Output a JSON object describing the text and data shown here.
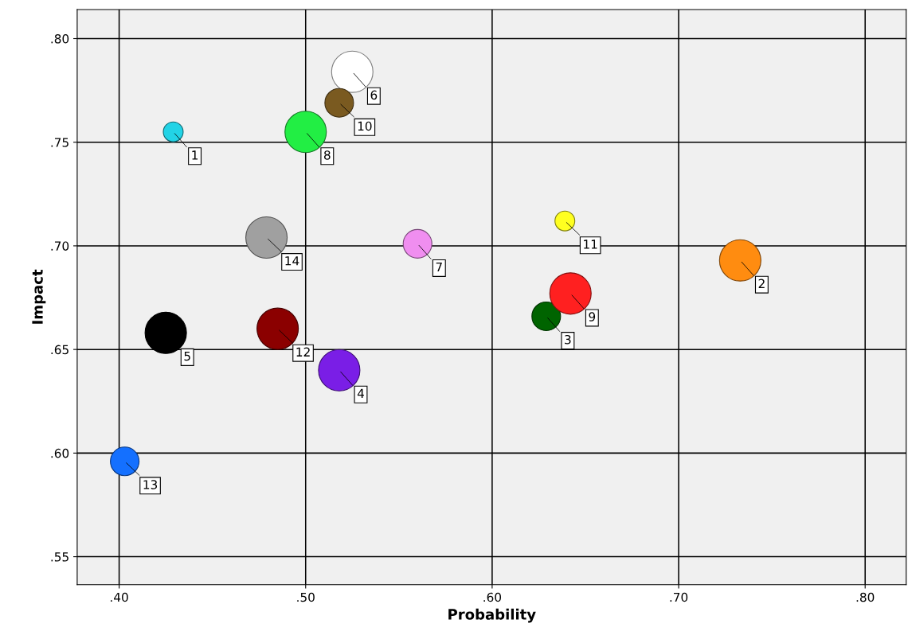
{
  "chart_data": {
    "type": "bubble",
    "xlabel": "Probability",
    "ylabel": "Impact",
    "x": [
      0.429,
      0.733,
      0.629,
      0.518,
      0.425,
      0.525,
      0.56,
      0.5,
      0.642,
      0.518,
      0.639,
      0.485,
      0.403,
      0.479
    ],
    "values": [
      0.755,
      0.693,
      0.666,
      0.64,
      0.658,
      0.784,
      0.701,
      0.755,
      0.677,
      0.769,
      0.712,
      0.66,
      0.596,
      0.704
    ],
    "sizes": [
      0.23,
      1,
      0.48,
      1,
      1,
      1,
      0.48,
      1,
      1,
      0.48,
      0.23,
      1,
      0.48,
      1
    ],
    "colors": [
      "#22d3e6",
      "#ff8c10",
      "#006400",
      "#7a1ee6",
      "#000000",
      "#ffffff",
      "#f08ef0",
      "#22ee44",
      "#ff2020",
      "#7a5a20",
      "#ffff20",
      "#8b0000",
      "#1470ff",
      "#a0a0a0"
    ],
    "annotations": [
      {
        "text": "1",
        "x": 0.429,
        "y": 0.755
      },
      {
        "text": "2",
        "x": 0.733,
        "y": 0.693
      },
      {
        "text": "3",
        "x": 0.629,
        "y": 0.666
      },
      {
        "text": "4",
        "x": 0.518,
        "y": 0.64
      },
      {
        "text": "5",
        "x": 0.425,
        "y": 0.658
      },
      {
        "text": "6",
        "x": 0.525,
        "y": 0.784
      },
      {
        "text": "7",
        "x": 0.56,
        "y": 0.701
      },
      {
        "text": "8",
        "x": 0.5,
        "y": 0.755
      },
      {
        "text": "9",
        "x": 0.642,
        "y": 0.677
      },
      {
        "text": "10",
        "x": 0.518,
        "y": 0.769
      },
      {
        "text": "11",
        "x": 0.639,
        "y": 0.712
      },
      {
        "text": "12",
        "x": 0.485,
        "y": 0.66
      },
      {
        "text": "13",
        "x": 0.403,
        "y": 0.596
      },
      {
        "text": "14",
        "x": 0.479,
        "y": 0.704
      }
    ],
    "xlim": [
      0.3775,
      0.822
    ],
    "ylim": [
      0.5365,
      0.814
    ],
    "xticks": [
      {
        "value": 0.4,
        "label": ".40"
      },
      {
        "value": 0.5,
        "label": ".50"
      },
      {
        "value": 0.6,
        "label": ".60"
      },
      {
        "value": 0.7,
        "label": ".70"
      },
      {
        "value": 0.8,
        "label": ".80"
      }
    ],
    "yticks": [
      {
        "value": 0.55,
        "label": ".55"
      },
      {
        "value": 0.6,
        "label": ".60"
      },
      {
        "value": 0.65,
        "label": ".65"
      },
      {
        "value": 0.7,
        "label": ".70"
      },
      {
        "value": 0.75,
        "label": ".75"
      },
      {
        "value": 0.8,
        "label": ".80"
      }
    ],
    "grid": true
  }
}
